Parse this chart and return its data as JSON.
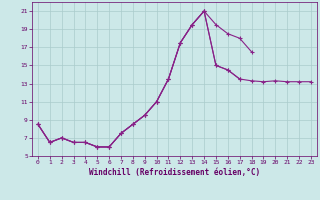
{
  "background_color": "#cce8e8",
  "grid_color": "#aacccc",
  "line_color": "#882288",
  "xlabel": "Windchill (Refroidissement éolien,°C)",
  "line1_x": [
    0,
    1,
    2,
    3,
    4,
    5,
    6,
    7,
    8,
    9,
    10,
    11,
    12,
    13,
    14,
    15,
    16,
    17,
    18
  ],
  "line1_y": [
    8.5,
    6.5,
    7.0,
    6.5,
    6.5,
    6.0,
    6.0,
    7.5,
    8.5,
    9.5,
    11.0,
    13.5,
    17.5,
    19.5,
    21.0,
    19.5,
    18.5,
    18.0,
    16.5
  ],
  "line2_x": [
    0,
    1,
    2,
    3,
    4,
    5,
    6,
    7,
    8,
    9,
    10,
    11,
    12,
    13,
    14,
    15,
    16,
    17
  ],
  "line2_y": [
    8.5,
    6.5,
    7.0,
    6.5,
    6.5,
    6.0,
    6.0,
    7.5,
    8.5,
    9.5,
    11.0,
    13.5,
    17.5,
    19.5,
    21.0,
    15.0,
    14.5,
    13.5
  ],
  "line3_x": [
    0,
    1,
    2,
    3,
    4,
    5,
    6,
    7,
    8,
    9,
    10,
    11,
    12,
    13,
    14,
    15,
    16,
    17,
    18,
    19,
    20,
    21,
    22,
    23
  ],
  "line3_y": [
    8.5,
    6.5,
    7.0,
    6.5,
    6.5,
    6.0,
    6.0,
    7.5,
    8.5,
    9.5,
    11.0,
    13.5,
    17.5,
    19.5,
    21.0,
    15.0,
    14.5,
    13.5,
    13.3,
    13.2,
    13.3,
    13.2,
    13.2,
    13.2
  ],
  "ylim": [
    5,
    22
  ],
  "xlim": [
    -0.5,
    23.5
  ],
  "yticks": [
    5,
    7,
    9,
    11,
    13,
    15,
    17,
    19,
    21
  ],
  "xticks": [
    0,
    1,
    2,
    3,
    4,
    5,
    6,
    7,
    8,
    9,
    10,
    11,
    12,
    13,
    14,
    15,
    16,
    17,
    18,
    19,
    20,
    21,
    22,
    23
  ]
}
